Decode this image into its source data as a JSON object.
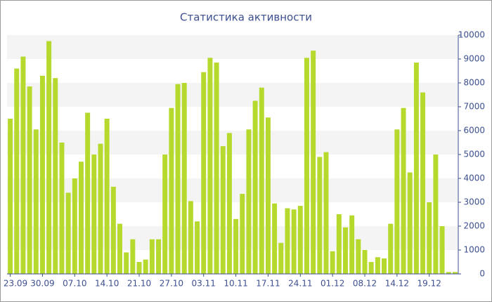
{
  "chart_data": {
    "type": "bar",
    "title": "Статистика активности",
    "categories": [
      "23.09",
      null,
      null,
      null,
      null,
      "30.09",
      null,
      null,
      null,
      null,
      "07.10",
      null,
      null,
      null,
      null,
      "14.10",
      null,
      null,
      null,
      null,
      "21.10",
      null,
      null,
      null,
      null,
      "27.10",
      null,
      null,
      null,
      null,
      "03.11",
      null,
      null,
      null,
      null,
      "10.11",
      null,
      null,
      null,
      null,
      "17.11",
      null,
      null,
      null,
      null,
      "24.11",
      null,
      null,
      null,
      null,
      "01.12",
      null,
      null,
      null,
      null,
      "08.12",
      null,
      null,
      null,
      null,
      "14.12",
      null,
      null,
      null,
      null,
      "19.12",
      null,
      null,
      null,
      null
    ],
    "values": [
      6500,
      8600,
      9100,
      7850,
      6050,
      8300,
      9750,
      8200,
      5500,
      3400,
      4000,
      4700,
      6750,
      5000,
      5450,
      6500,
      3650,
      2100,
      900,
      1450,
      500,
      600,
      1450,
      1450,
      5000,
      6950,
      7950,
      8000,
      3050,
      2200,
      8450,
      9050,
      8850,
      5350,
      5900,
      2300,
      3350,
      6050,
      7250,
      7800,
      6550,
      2950,
      1300,
      2750,
      2700,
      2850,
      9050,
      9350,
      4900,
      5100,
      950,
      2500,
      1950,
      2450,
      1450,
      1000,
      500,
      700,
      650,
      2100,
      6050,
      6950,
      4250,
      8850,
      7600,
      3000,
      5000,
      2000,
      80,
      80
    ],
    "color": "#b6d92e",
    "ylim": [
      0,
      10000
    ],
    "yticks": [
      0,
      1000,
      2000,
      3000,
      4000,
      5000,
      6000,
      7000,
      8000,
      9000,
      10000
    ],
    "grid": true
  }
}
